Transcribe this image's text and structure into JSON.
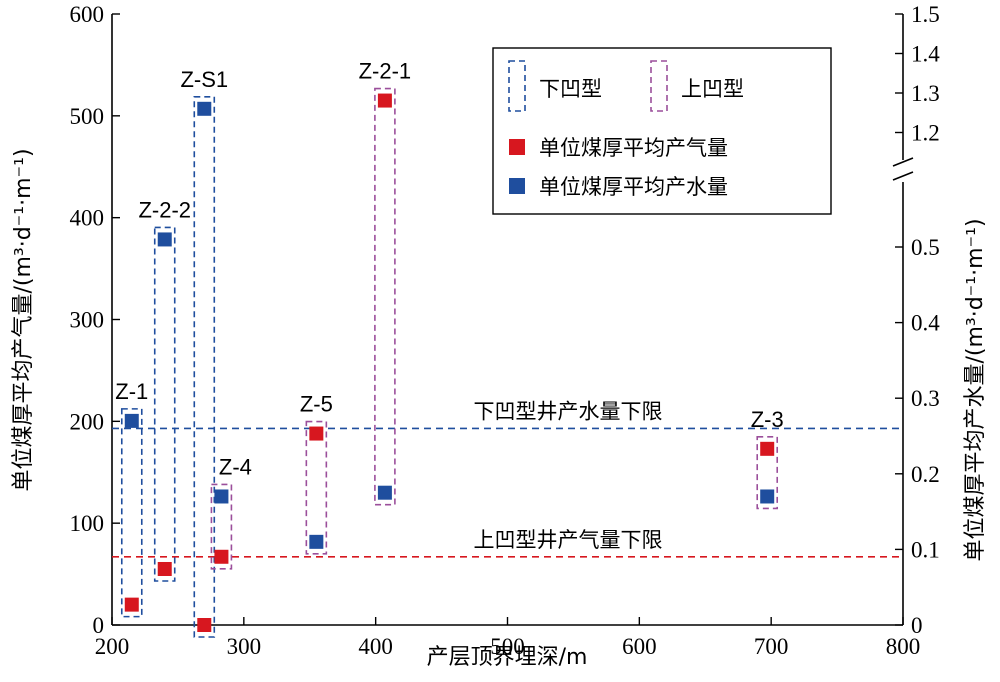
{
  "chart_data": {
    "type": "scatter",
    "xlabel": "产层顶界埋深/m",
    "ylabel_left": "单位煤厚平均产气量/(m³·d⁻¹·m⁻¹)",
    "ylabel_right": "单位煤厚平均产水量/(m³·d⁻¹·m⁻¹)",
    "xlim": [
      200,
      800
    ],
    "x_ticks": [
      "200",
      "300",
      "400",
      "500",
      "600",
      "700",
      "800"
    ],
    "ylim_left": [
      0,
      600
    ],
    "y_left_ticks": [
      "0",
      "100",
      "200",
      "300",
      "400",
      "500",
      "600"
    ],
    "y_right_lower_ticks": [
      "0",
      "0.1",
      "0.2",
      "0.3",
      "0.4",
      "0.5"
    ],
    "y_right_upper_ticks": [
      "1.2",
      "1.3",
      "1.4",
      "1.5"
    ],
    "right_axis_break": true,
    "series": [
      {
        "name": "单位煤厚平均产气量",
        "color": "#d7171f",
        "axis": "left",
        "points": [
          {
            "well": "Z-1",
            "x": 215,
            "y": 20
          },
          {
            "well": "Z-2-2",
            "x": 240,
            "y": 55
          },
          {
            "well": "Z-S1",
            "x": 270,
            "y": 0
          },
          {
            "well": "Z-4",
            "x": 283,
            "y": 67
          },
          {
            "well": "Z-5",
            "x": 355,
            "y": 188
          },
          {
            "well": "Z-2-1",
            "x": 407,
            "y": 515
          },
          {
            "well": "Z-3",
            "x": 697,
            "y": 173
          }
        ]
      },
      {
        "name": "单位煤厚平均产水量",
        "color": "#1f4e9e",
        "axis": "right",
        "points": [
          {
            "well": "Z-1",
            "x": 215,
            "y": 0.27
          },
          {
            "well": "Z-2-2",
            "x": 240,
            "y": 0.51
          },
          {
            "well": "Z-S1",
            "x": 270,
            "y": 1.26
          },
          {
            "well": "Z-4",
            "x": 283,
            "y": 0.17
          },
          {
            "well": "Z-5",
            "x": 355,
            "y": 0.11
          },
          {
            "well": "Z-2-1",
            "x": 407,
            "y": 0.175
          },
          {
            "well": "Z-3",
            "x": 697,
            "y": 0.17
          }
        ]
      }
    ],
    "well_labels": [
      "Z-1",
      "Z-2-2",
      "Z-S1",
      "Z-4",
      "Z-5",
      "Z-2-1",
      "Z-3"
    ],
    "groups": [
      {
        "type": "下凹型",
        "wells": [
          "Z-1",
          "Z-2-2",
          "Z-S1"
        ],
        "color": "#1f4e9e"
      },
      {
        "type": "上凹型",
        "wells": [
          "Z-4",
          "Z-5",
          "Z-2-1",
          "Z-3"
        ],
        "color": "#9b4f9b"
      }
    ],
    "reference_lines": [
      {
        "label": "下凹型井产水量下限",
        "axis": "right",
        "y": 0.26,
        "color": "#1f4e9e"
      },
      {
        "label": "上凹型井产气量下限",
        "axis": "left",
        "y": 67,
        "color": "#d7171f"
      }
    ],
    "legend": {
      "position": "top-right",
      "items": [
        {
          "label": "下凹型",
          "kind": "dashed-box",
          "color": "#1f4e9e"
        },
        {
          "label": "上凹型",
          "kind": "dashed-box",
          "color": "#9b4f9b"
        },
        {
          "label": "单位煤厚平均产气量",
          "kind": "square",
          "color": "#d7171f"
        },
        {
          "label": "单位煤厚平均产水量",
          "kind": "square",
          "color": "#1f4e9e"
        }
      ]
    }
  }
}
